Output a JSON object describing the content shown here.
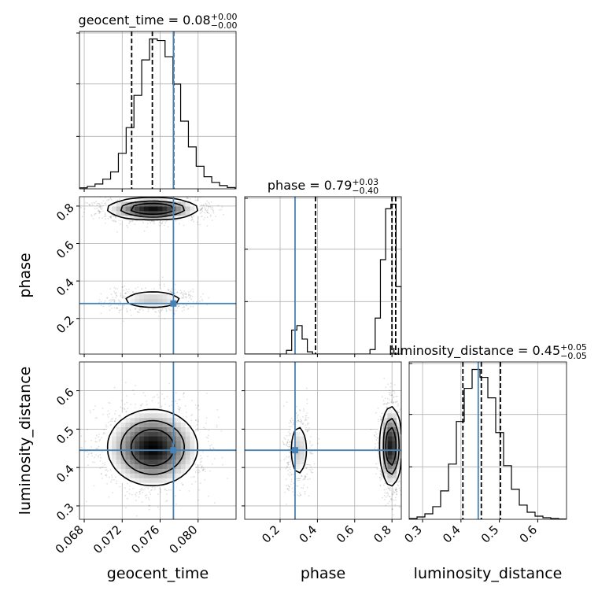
{
  "chart_data": {
    "type": "corner",
    "grid": true,
    "truth_color": "#4682b4",
    "parameters": [
      {
        "name": "geocent_time",
        "axis_label": "geocent_time",
        "range": [
          0.0675,
          0.084
        ],
        "ticks": [
          0.068,
          0.072,
          0.076,
          0.08
        ],
        "tick_labels": [
          "0.068",
          "0.072",
          "0.076",
          "0.080"
        ],
        "truth": 0.0774,
        "quantiles": [
          0.073,
          0.07518,
          0.07743
        ],
        "title_main": "geocent_time = 0.08",
        "title_plus": "+0.00",
        "title_minus": "−0.00",
        "hist_edges_start": 0.0675,
        "hist_bin_width": 0.00082,
        "hist_counts": [
          0.6,
          1.5,
          3.0,
          6.0,
          10.5,
          22.0,
          38.0,
          58.0,
          80.0,
          93.0,
          92.0,
          82.0,
          65.0,
          42.0,
          26.0,
          14.0,
          7.5,
          4.0,
          2.0,
          0.8
        ]
      },
      {
        "name": "phase",
        "axis_label": "phase",
        "range": [
          0.01,
          0.85
        ],
        "ticks": [
          0.2,
          0.4,
          0.6,
          0.8
        ],
        "tick_labels": [
          "0.2",
          "0.4",
          "0.6",
          "0.8"
        ],
        "truth": 0.28,
        "quantiles": [
          0.39,
          0.8,
          0.82
        ],
        "title_main": "phase = 0.79",
        "title_plus": "+0.03",
        "title_minus": "−0.40",
        "hist_edges_start": 0.01,
        "hist_bin_width": 0.028,
        "hist_counts": [
          0,
          0,
          0,
          0,
          0,
          0,
          0,
          0,
          2.5,
          16,
          19,
          10,
          1.5,
          0,
          0,
          0,
          0,
          0,
          0,
          0,
          0,
          0,
          0,
          0,
          3,
          24,
          63,
          97,
          100,
          45
        ]
      },
      {
        "name": "luminosity_distance",
        "axis_label": "luminosity_distance",
        "range": [
          0.265,
          0.675
        ],
        "ticks": [
          0.3,
          0.4,
          0.5,
          0.6
        ],
        "tick_labels": [
          "0.3",
          "0.4",
          "0.5",
          "0.6"
        ],
        "truth": 0.445,
        "quantiles": [
          0.405,
          0.453,
          0.503
        ],
        "title_main": "luminosity_distance = 0.45",
        "title_plus": "+0.05",
        "title_minus": "−0.05",
        "hist_edges_start": 0.265,
        "hist_bin_width": 0.0205,
        "hist_counts": [
          0.5,
          1.5,
          3.5,
          8.0,
          18.0,
          35.0,
          62.0,
          83.0,
          95.0,
          90.0,
          77.0,
          55.0,
          34.0,
          19.0,
          9.0,
          4.5,
          2.0,
          1.0,
          0.5,
          0.2
        ]
      }
    ],
    "pairs": [
      {
        "x": "geocent_time",
        "y": "phase",
        "y_ticks": [
          0.2,
          0.4,
          0.6,
          0.8
        ],
        "y_tick_labels": [
          "0.2",
          "0.4",
          "0.6",
          "0.8"
        ],
        "modes": [
          {
            "x": 0.0752,
            "y": 0.785,
            "sx": 0.0023,
            "sy": 0.028,
            "weight": 0.78
          },
          {
            "x": 0.0752,
            "y": 0.3,
            "sx": 0.0021,
            "sy": 0.03,
            "weight": 0.22
          }
        ]
      },
      {
        "x": "geocent_time",
        "y": "luminosity_distance",
        "y_ticks": [
          0.3,
          0.4,
          0.5,
          0.6
        ],
        "y_tick_labels": [
          "0.3",
          "0.4",
          "0.5",
          "0.6"
        ],
        "modes": [
          {
            "x": 0.0752,
            "y": 0.452,
            "sx": 0.0023,
            "sy": 0.048,
            "weight": 1.0
          }
        ]
      },
      {
        "x": "phase",
        "y": "luminosity_distance",
        "modes": [
          {
            "x": 0.795,
            "y": 0.455,
            "sx": 0.028,
            "sy": 0.05,
            "weight": 0.78
          },
          {
            "x": 0.3,
            "y": 0.445,
            "sx": 0.03,
            "sy": 0.045,
            "weight": 0.22
          }
        ]
      }
    ]
  }
}
